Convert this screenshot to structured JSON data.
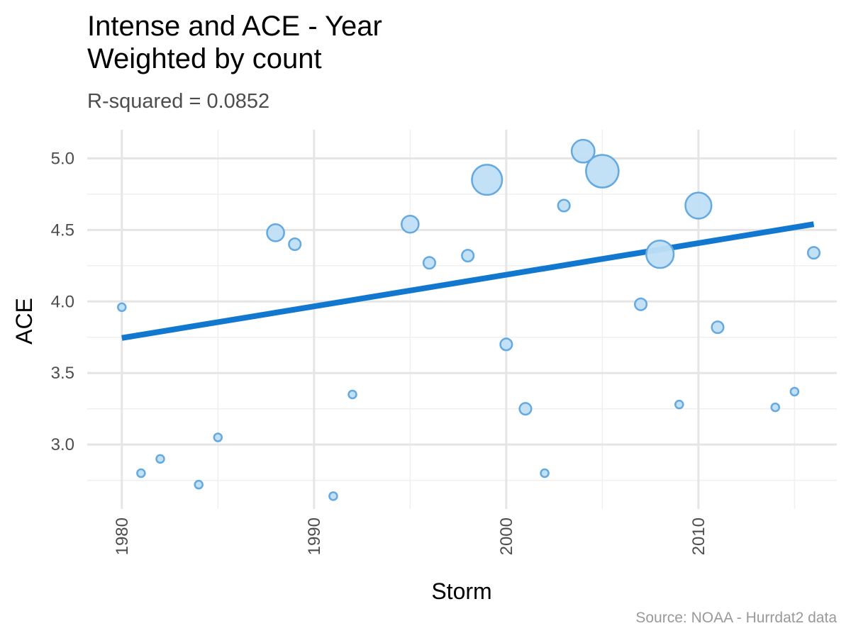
{
  "chart": {
    "title_line1": "Intense and ACE - Year",
    "title_line2": "Weighted by count",
    "subtitle": "R-squared =  0.0852",
    "caption": "Source: NOAA - Hurrdat2 data"
  },
  "chart_data": {
    "type": "scatter",
    "title": "Intense and ACE - Year\nWeighted by count",
    "subtitle": "R-squared =  0.0852",
    "xlabel": "Storm",
    "ylabel": "ACE",
    "xlim": [
      1978.2,
      2017.2
    ],
    "ylim": [
      2.55,
      5.2
    ],
    "x_ticks": [
      1980,
      1990,
      2000,
      2010
    ],
    "x_tick_labels": [
      "1980",
      "1990",
      "2000",
      "2010"
    ],
    "y_ticks": [
      3.0,
      3.5,
      4.0,
      4.5,
      5.0
    ],
    "y_tick_labels": [
      "3.0",
      "3.5",
      "4.0",
      "4.5",
      "5.0"
    ],
    "grid": true,
    "points": [
      {
        "x": 1980,
        "y": 3.96,
        "count": 1
      },
      {
        "x": 1981,
        "y": 2.8,
        "count": 1
      },
      {
        "x": 1982,
        "y": 2.9,
        "count": 1
      },
      {
        "x": 1984,
        "y": 2.72,
        "count": 1
      },
      {
        "x": 1985,
        "y": 3.05,
        "count": 1
      },
      {
        "x": 1988,
        "y": 4.48,
        "count": 4
      },
      {
        "x": 1989,
        "y": 4.4,
        "count": 2
      },
      {
        "x": 1991,
        "y": 2.64,
        "count": 1
      },
      {
        "x": 1992,
        "y": 3.35,
        "count": 1
      },
      {
        "x": 1995,
        "y": 4.54,
        "count": 4
      },
      {
        "x": 1996,
        "y": 4.27,
        "count": 2
      },
      {
        "x": 1998,
        "y": 4.32,
        "count": 2
      },
      {
        "x": 1999,
        "y": 4.85,
        "count": 12
      },
      {
        "x": 2000,
        "y": 3.7,
        "count": 2
      },
      {
        "x": 2001,
        "y": 3.25,
        "count": 2
      },
      {
        "x": 2002,
        "y": 2.8,
        "count": 1
      },
      {
        "x": 2003,
        "y": 4.67,
        "count": 2
      },
      {
        "x": 2004,
        "y": 5.05,
        "count": 7
      },
      {
        "x": 2005,
        "y": 4.91,
        "count": 14
      },
      {
        "x": 2007,
        "y": 3.98,
        "count": 2
      },
      {
        "x": 2008,
        "y": 4.33,
        "count": 10
      },
      {
        "x": 2009,
        "y": 3.28,
        "count": 1
      },
      {
        "x": 2010,
        "y": 4.67,
        "count": 9
      },
      {
        "x": 2011,
        "y": 3.82,
        "count": 2
      },
      {
        "x": 2014,
        "y": 3.26,
        "count": 1
      },
      {
        "x": 2015,
        "y": 3.37,
        "count": 1
      },
      {
        "x": 2016,
        "y": 4.34,
        "count": 2
      }
    ],
    "fit_line": {
      "x": [
        1980,
        2016
      ],
      "y": [
        3.745,
        4.54
      ]
    },
    "colors": {
      "point_fill": "#bfdff5",
      "point_stroke": "#64a9e0",
      "fit_line": "#1278cf",
      "grid_major": "#e5e5e5",
      "grid_minor": "#efefef"
    }
  }
}
